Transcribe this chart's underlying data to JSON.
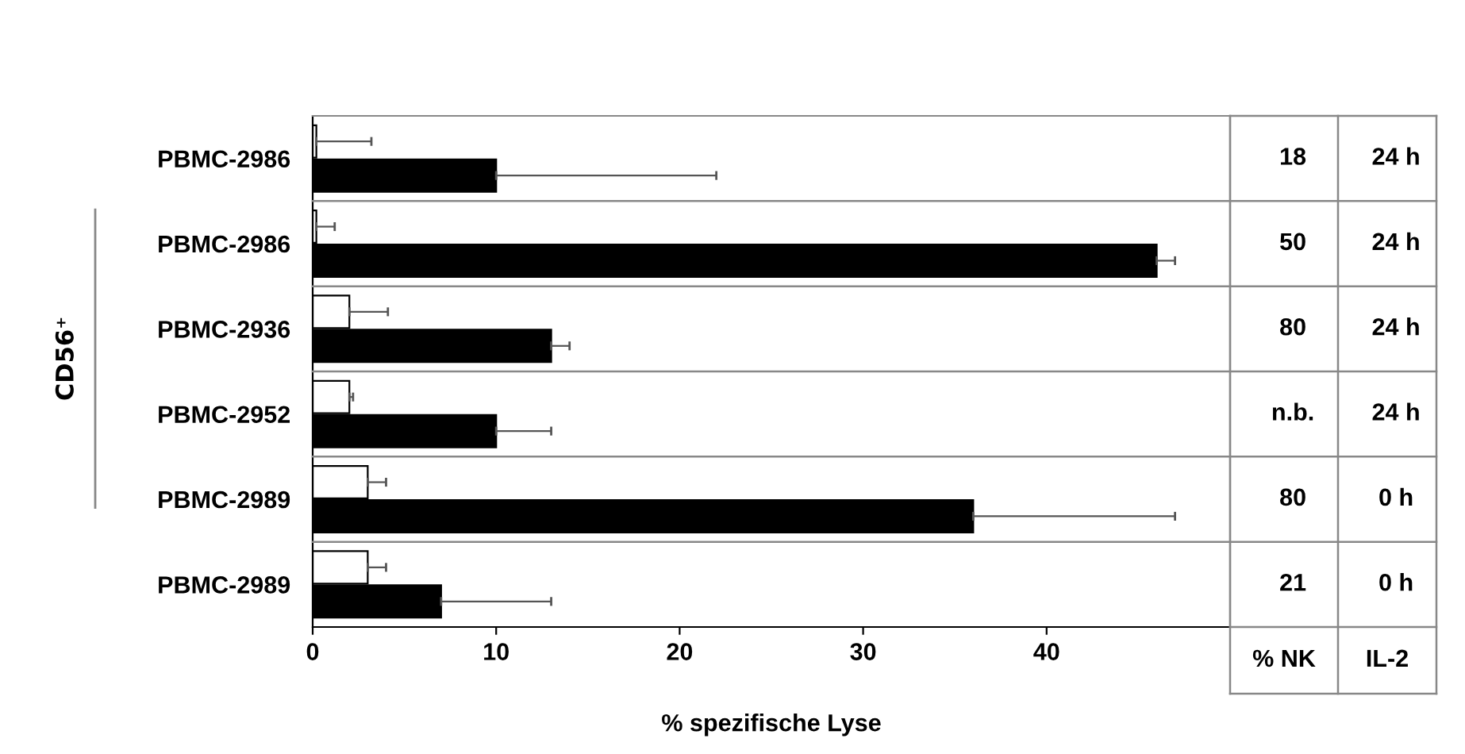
{
  "chart_data": {
    "type": "bar",
    "orientation": "horizontal",
    "xlabel": "% spezifische Lyse",
    "categories": [
      "PBMC-2986",
      "PBMC-2986",
      "PBMC-2936",
      "PBMC-2952",
      "PBMC-2989",
      "PBMC-2989"
    ],
    "series": [
      {
        "color": "#ffffff",
        "values": [
          0.2,
          0.2,
          2,
          2,
          3,
          3
        ],
        "errors": [
          [
            0.2,
            3.2
          ],
          [
            0.2,
            1.2
          ],
          [
            2,
            4.1
          ],
          [
            2,
            2.2
          ],
          [
            3,
            4
          ],
          [
            3,
            4
          ]
        ]
      },
      {
        "color": "#000000",
        "values": [
          10,
          46,
          13,
          10,
          36,
          7
        ],
        "errors": [
          [
            10,
            22
          ],
          [
            46,
            47
          ],
          [
            13,
            14
          ],
          [
            10,
            13
          ],
          [
            36,
            47
          ],
          [
            7,
            13
          ]
        ]
      }
    ],
    "xlim": [
      0,
      50
    ],
    "xticks": [
      0,
      10,
      20,
      30,
      40
    ],
    "grid": false,
    "legend": false,
    "annotations": [
      "18",
      "50",
      "80",
      "n.b.",
      "80",
      "21",
      "% NK",
      "24 h",
      "24 h",
      "24 h",
      "24 h",
      "0 h",
      "0 h",
      "IL-2",
      "CD56⁺"
    ]
  }
}
